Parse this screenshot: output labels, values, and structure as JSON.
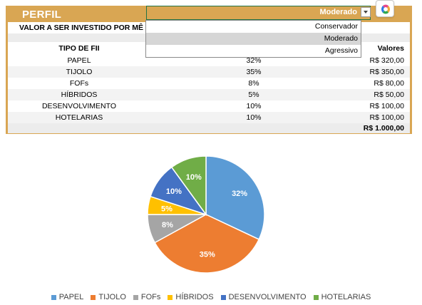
{
  "panel": {
    "title": "PERFIL",
    "invest_label": "VALOR A SER INVESTIDO POR MÊ",
    "header_fii": "TIPO DE FII",
    "header_valores": "Valores",
    "rows": [
      {
        "name": "PAPEL",
        "pct": "32%",
        "value": "R$ 320,00"
      },
      {
        "name": "TIJOLO",
        "pct": "35%",
        "value": "R$ 350,00"
      },
      {
        "name": "FOFs",
        "pct": "8%",
        "value": "R$ 80,00"
      },
      {
        "name": "HÍBRIDOS",
        "pct": "5%",
        "value": "R$ 50,00"
      },
      {
        "name": "DESENVOLVIMENTO",
        "pct": "10%",
        "value": "R$ 100,00"
      },
      {
        "name": "HOTELARIAS",
        "pct": "10%",
        "value": "R$ 100,00"
      }
    ],
    "total": "R$ 1.000,00"
  },
  "dropdown": {
    "selected": "Moderado",
    "options": [
      "Conservador",
      "Moderado",
      "Agressivo"
    ]
  },
  "chart_data": {
    "type": "pie",
    "categories": [
      "PAPEL",
      "TIJOLO",
      "FOFs",
      "HÍBRIDOS",
      "DESENVOLVIMENTO",
      "HOTELARIAS"
    ],
    "values": [
      32,
      35,
      8,
      5,
      10,
      10
    ],
    "labels": [
      "32%",
      "35%",
      "8%",
      "5%",
      "10%",
      "10%"
    ],
    "colors": [
      "#5B9BD5",
      "#ED7D31",
      "#A5A5A5",
      "#FFC000",
      "#4472C4",
      "#70AD47"
    ],
    "legend_position": "bottom"
  },
  "colors": {
    "accent": "#D9A653",
    "selection_border": "#217346"
  },
  "icons": {
    "copilot": "copilot-icon",
    "dropdown": "chevron-down-icon"
  }
}
